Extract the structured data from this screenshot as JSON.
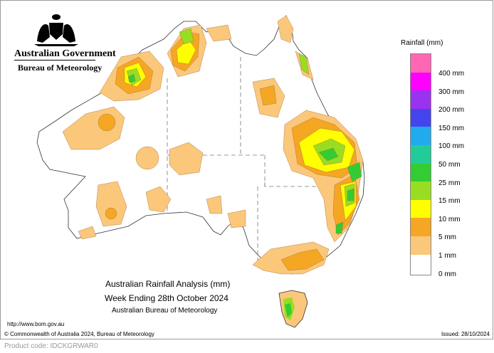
{
  "header": {
    "government": "Australian Government",
    "bureau": "Bureau of Meteorology",
    "crest_icon": "commonwealth-coat-of-arms"
  },
  "legend": {
    "title": "Rainfall (mm)",
    "items": [
      {
        "label": "400 mm",
        "color": "#ff66b3"
      },
      {
        "label": "300 mm",
        "color": "#ff00ff"
      },
      {
        "label": "200 mm",
        "color": "#9933ee"
      },
      {
        "label": "150 mm",
        "color": "#4444ee"
      },
      {
        "label": "100 mm",
        "color": "#22aaee"
      },
      {
        "label": "50 mm",
        "color": "#22cc99"
      },
      {
        "label": "25 mm",
        "color": "#33cc33"
      },
      {
        "label": "15 mm",
        "color": "#99dd22"
      },
      {
        "label": "10 mm",
        "color": "#ffff00"
      },
      {
        "label": "5 mm",
        "color": "#f5a623"
      },
      {
        "label": "1 mm",
        "color": "#fbc77a"
      },
      {
        "label": "0 mm",
        "color": "#ffffff"
      }
    ]
  },
  "caption": {
    "line1": "Australian Rainfall Analysis (mm)",
    "line2": "Week Ending 28th October 2024",
    "line3": "Australian Bureau of Meteorology"
  },
  "footer": {
    "url": "http://www.bom.gov.au",
    "copyright": "© Commonwealth of Australia 2024, Bureau of Meteorology",
    "issued": "Issued: 28/10/2024",
    "product_code": "Product code: IDCKGRWAR0"
  }
}
